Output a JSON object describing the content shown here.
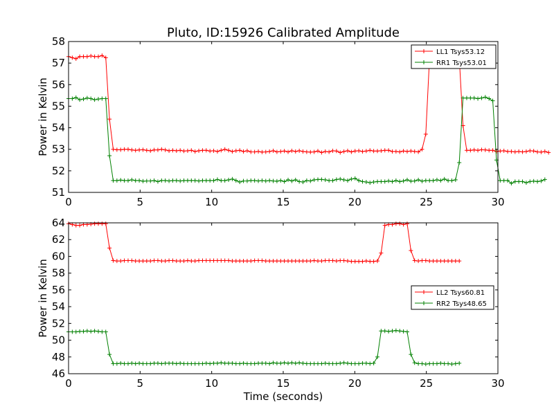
{
  "title": "Pluto, ID:15926 Calibrated Amplitude",
  "xlabel": "Time (seconds)",
  "colors": {
    "red": "#ff0000",
    "green": "#008000"
  },
  "chart_data": [
    {
      "type": "line",
      "title": "Pluto, ID:15926 Calibrated Amplitude",
      "xlabel": "",
      "ylabel": "Power in Kelvin",
      "xlim": [
        0,
        30
      ],
      "ylim": [
        51,
        58
      ],
      "xticks": [
        "0",
        "5",
        "10",
        "15",
        "20",
        "25",
        "30"
      ],
      "yticks": [
        "51",
        "52",
        "53",
        "54",
        "55",
        "56",
        "57",
        "58"
      ],
      "grid": false,
      "legend": "top-right",
      "x_step": 0.26,
      "series": [
        {
          "name": "LL1 Tsys53.12",
          "color": "#ff0000",
          "marker": "+",
          "values": [
            57.3,
            57.25,
            57.2,
            57.3,
            57.3,
            57.3,
            57.33,
            57.3,
            57.3,
            57.35,
            57.25,
            54.4,
            53.0,
            52.98,
            52.98,
            53.0,
            53.0,
            52.97,
            52.95,
            52.97,
            52.98,
            52.95,
            52.93,
            52.97,
            52.97,
            53.0,
            52.97,
            52.93,
            52.95,
            52.93,
            52.95,
            52.92,
            52.93,
            52.95,
            52.9,
            52.93,
            52.95,
            52.95,
            52.92,
            52.93,
            52.9,
            52.95,
            53.0,
            52.95,
            52.9,
            52.93,
            52.95,
            52.9,
            52.93,
            52.88,
            52.88,
            52.9,
            52.87,
            52.88,
            52.9,
            52.93,
            52.88,
            52.9,
            52.92,
            52.88,
            52.93,
            52.9,
            52.93,
            52.9,
            52.88,
            52.87,
            52.88,
            52.92,
            52.85,
            52.9,
            52.88,
            52.93,
            52.92,
            52.85,
            52.9,
            52.93,
            52.88,
            52.92,
            52.93,
            52.9,
            52.92,
            52.95,
            52.92,
            52.92,
            52.93,
            52.95,
            52.95,
            52.9,
            52.9,
            52.88,
            52.92,
            52.9,
            52.92,
            52.9,
            52.88,
            53.0,
            53.7,
            57.2,
            57.25,
            57.2,
            57.3,
            57.33,
            57.3,
            57.3,
            57.3,
            57.25,
            54.1,
            52.95,
            52.95,
            52.97,
            52.95,
            52.98,
            52.97,
            52.95,
            52.95,
            52.9,
            52.92,
            52.93,
            52.9,
            52.9,
            52.88,
            52.9,
            52.88,
            52.9,
            52.93,
            52.92,
            52.88,
            52.87,
            52.9,
            52.85
          ]
        },
        {
          "name": "RR1 Tsys53.01",
          "color": "#008000",
          "marker": "+",
          "values": [
            55.35,
            55.35,
            55.4,
            55.3,
            55.33,
            55.38,
            55.35,
            55.3,
            55.33,
            55.35,
            55.35,
            52.7,
            51.55,
            51.55,
            51.57,
            51.55,
            51.55,
            51.58,
            51.55,
            51.55,
            51.52,
            51.53,
            51.53,
            51.55,
            51.5,
            51.55,
            51.55,
            51.53,
            51.55,
            51.55,
            51.53,
            51.55,
            51.55,
            51.55,
            51.55,
            51.53,
            51.55,
            51.55,
            51.55,
            51.55,
            51.6,
            51.55,
            51.55,
            51.58,
            51.62,
            51.55,
            51.48,
            51.53,
            51.53,
            51.55,
            51.55,
            51.53,
            51.55,
            51.53,
            51.55,
            51.53,
            51.52,
            51.55,
            51.5,
            51.58,
            51.53,
            51.58,
            51.5,
            51.48,
            51.55,
            51.53,
            51.58,
            51.6,
            51.6,
            51.58,
            51.55,
            51.55,
            51.6,
            51.62,
            51.58,
            51.55,
            51.62,
            51.65,
            51.55,
            51.5,
            51.48,
            51.45,
            51.48,
            51.5,
            51.5,
            51.5,
            51.53,
            51.5,
            51.55,
            51.5,
            51.53,
            51.58,
            51.52,
            51.53,
            51.58,
            51.52,
            51.55,
            51.55,
            51.55,
            51.58,
            51.55,
            51.62,
            51.55,
            51.55,
            51.58,
            52.38,
            55.38,
            55.38,
            55.38,
            55.38,
            55.35,
            55.38,
            55.42,
            55.35,
            55.25,
            52.5,
            51.55,
            51.55,
            51.55,
            51.42,
            51.5,
            51.5,
            51.5,
            51.45,
            51.5,
            51.52,
            51.5,
            51.53,
            51.6
          ]
        }
      ]
    },
    {
      "type": "line",
      "title": "",
      "xlabel": "Time (seconds)",
      "ylabel": "Power in Kelvin",
      "xlim": [
        0,
        30
      ],
      "ylim": [
        46,
        64
      ],
      "xticks": [
        "0",
        "5",
        "10",
        "15",
        "20",
        "25",
        "30"
      ],
      "yticks": [
        "46",
        "48",
        "50",
        "52",
        "54",
        "56",
        "58",
        "60",
        "62",
        "64"
      ],
      "grid": false,
      "legend": "center-right",
      "x_step": 0.26,
      "series": [
        {
          "name": "LL2 Tsys60.81",
          "color": "#ff0000",
          "marker": "+",
          "values": [
            63.9,
            63.8,
            63.7,
            63.7,
            63.8,
            63.8,
            63.85,
            63.9,
            63.9,
            63.9,
            63.9,
            61.0,
            59.5,
            59.45,
            59.45,
            59.5,
            59.5,
            59.5,
            59.45,
            59.45,
            59.45,
            59.45,
            59.45,
            59.5,
            59.5,
            59.45,
            59.45,
            59.5,
            59.5,
            59.45,
            59.45,
            59.45,
            59.5,
            59.45,
            59.45,
            59.5,
            59.5,
            59.5,
            59.5,
            59.5,
            59.5,
            59.5,
            59.5,
            59.5,
            59.45,
            59.45,
            59.45,
            59.45,
            59.45,
            59.45,
            59.5,
            59.5,
            59.5,
            59.45,
            59.45,
            59.45,
            59.45,
            59.45,
            59.45,
            59.45,
            59.45,
            59.45,
            59.45,
            59.45,
            59.45,
            59.45,
            59.5,
            59.45,
            59.45,
            59.5,
            59.5,
            59.5,
            59.45,
            59.5,
            59.5,
            59.45,
            59.4,
            59.4,
            59.4,
            59.4,
            59.45,
            59.4,
            59.4,
            59.45,
            60.4,
            63.7,
            63.8,
            63.8,
            63.9,
            63.9,
            63.8,
            63.9,
            60.7,
            59.5,
            59.45,
            59.5,
            59.5,
            59.45,
            59.45,
            59.45,
            59.45,
            59.45,
            59.45,
            59.45,
            59.45,
            59.45
          ]
        },
        {
          "name": "RR2 Tsys48.65",
          "color": "#008000",
          "marker": "+",
          "values": [
            51.0,
            51.0,
            51.0,
            51.05,
            51.05,
            51.1,
            51.05,
            51.1,
            51.05,
            51.0,
            51.0,
            48.3,
            47.2,
            47.2,
            47.25,
            47.2,
            47.2,
            47.25,
            47.2,
            47.25,
            47.2,
            47.2,
            47.2,
            47.25,
            47.25,
            47.2,
            47.25,
            47.25,
            47.25,
            47.2,
            47.25,
            47.2,
            47.2,
            47.2,
            47.2,
            47.2,
            47.2,
            47.25,
            47.2,
            47.25,
            47.25,
            47.3,
            47.25,
            47.25,
            47.25,
            47.2,
            47.2,
            47.25,
            47.2,
            47.2,
            47.2,
            47.25,
            47.25,
            47.25,
            47.2,
            47.3,
            47.25,
            47.25,
            47.3,
            47.25,
            47.3,
            47.25,
            47.3,
            47.25,
            47.2,
            47.2,
            47.2,
            47.2,
            47.2,
            47.25,
            47.2,
            47.2,
            47.2,
            47.25,
            47.3,
            47.25,
            47.2,
            47.2,
            47.2,
            47.25,
            47.25,
            47.2,
            47.25,
            48.0,
            51.1,
            51.1,
            51.05,
            51.1,
            51.15,
            51.1,
            51.05,
            51.0,
            48.3,
            47.3,
            47.2,
            47.2,
            47.15,
            47.2,
            47.2,
            47.2,
            47.25,
            47.2,
            47.2,
            47.15,
            47.2,
            47.25
          ]
        }
      ]
    }
  ]
}
